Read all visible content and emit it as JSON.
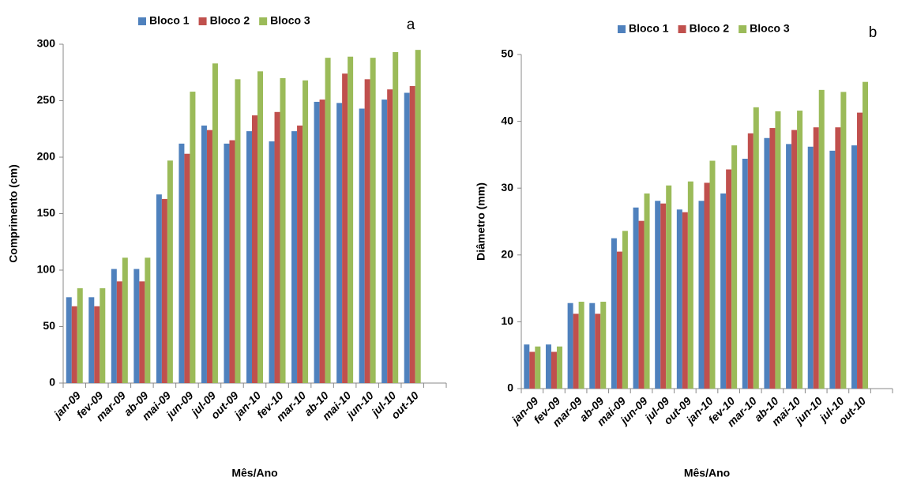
{
  "chart_data": [
    {
      "type": "bar",
      "annotation": "a",
      "ylabel": "Comprimento (cm)",
      "xlabel": "Mês/Ano",
      "categories": [
        "jan-09",
        "fev-09",
        "mar-09",
        "ab-09",
        "mai-09",
        "jun-09",
        "jul-09",
        "out-09",
        "jan-10",
        "fev-10",
        "mar-10",
        "ab-10",
        "mai-10",
        "jun-10",
        "jul-10",
        "out-10",
        null
      ],
      "series": [
        {
          "name": "Bloco 1",
          "color": "#4f81bd",
          "values": [
            76,
            76,
            101,
            101,
            167,
            212,
            228,
            212,
            223,
            214,
            223,
            249,
            248,
            243,
            251,
            257,
            null
          ]
        },
        {
          "name": "Bloco 2",
          "color": "#c0504d",
          "values": [
            68,
            68,
            90,
            90,
            163,
            203,
            224,
            215,
            237,
            240,
            228,
            251,
            274,
            269,
            260,
            263,
            null
          ]
        },
        {
          "name": "Bloco 3",
          "color": "#9bbb59",
          "values": [
            84,
            84,
            111,
            111,
            197,
            258,
            283,
            269,
            276,
            270,
            268,
            288,
            289,
            288,
            293,
            295,
            null
          ]
        }
      ],
      "ylim": [
        0,
        300
      ],
      "yticks": [
        0,
        50,
        100,
        150,
        200,
        250,
        300
      ],
      "grid": false,
      "legend": "top"
    },
    {
      "type": "bar",
      "annotation": "b",
      "ylabel": "Diâmetro (mm)",
      "xlabel": "Mês/Ano",
      "categories": [
        "jan-09",
        "fev-09",
        "mar-09",
        "ab-09",
        "mai-09",
        "jun-09",
        "jul-09",
        "out-09",
        "jan-10",
        "fev-10",
        "mar-10",
        "ab-10",
        "mai-10",
        "jun-10",
        "jul-10",
        "out-10",
        null
      ],
      "series": [
        {
          "name": "Bloco 1",
          "color": "#4f81bd",
          "values": [
            6.6,
            6.6,
            12.8,
            12.8,
            22.5,
            27.1,
            28.1,
            26.8,
            28.1,
            29.2,
            34.4,
            37.5,
            36.6,
            36.2,
            35.6,
            36.4,
            null
          ]
        },
        {
          "name": "Bloco 2",
          "color": "#c0504d",
          "values": [
            5.5,
            5.5,
            11.2,
            11.2,
            20.5,
            25.1,
            27.7,
            26.4,
            30.8,
            32.8,
            38.2,
            39,
            38.7,
            39.1,
            39.1,
            41.3,
            null
          ]
        },
        {
          "name": "Bloco 3",
          "color": "#9bbb59",
          "values": [
            6.3,
            6.3,
            13,
            13,
            23.6,
            29.2,
            30.4,
            31,
            34.1,
            36.4,
            42.1,
            41.5,
            41.6,
            44.7,
            44.4,
            45.9,
            null
          ]
        }
      ],
      "ylim": [
        0,
        50
      ],
      "yticks": [
        0,
        10,
        20,
        30,
        40,
        50
      ],
      "grid": false,
      "legend": "top"
    }
  ]
}
